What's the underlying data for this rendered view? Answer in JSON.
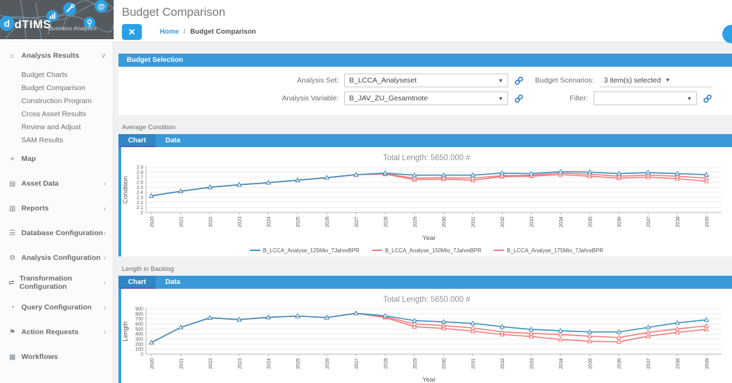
{
  "logo": {
    "name": "dTIMS",
    "tagline": "Business Analytics"
  },
  "sidebar": {
    "items": [
      {
        "label": "Analysis Results",
        "icon": "analysis-results-icon",
        "glyph": "⌂",
        "chevron": "expanded",
        "children": [
          "Budget Charts",
          "Budget Comparison",
          "Construction Program",
          "Cross Asset Results",
          "Review and Adjust",
          "SAM Results"
        ]
      },
      {
        "label": "Map",
        "icon": "map-icon",
        "glyph": "⌖"
      },
      {
        "label": "Asset Data",
        "icon": "asset-data-icon",
        "glyph": "▤",
        "chevron": "collapsed"
      },
      {
        "label": "Reports",
        "icon": "reports-icon",
        "glyph": "▥",
        "chevron": "collapsed"
      },
      {
        "label": "Database Configuration",
        "icon": "database-icon",
        "glyph": "☰",
        "chevron": "collapsed"
      },
      {
        "label": "Analysis Configuration",
        "icon": "analysis-configuration-icon",
        "glyph": "⚙",
        "chevron": "collapsed"
      },
      {
        "label": "Transformation Configuration",
        "icon": "transformation-icon",
        "glyph": "⇄",
        "chevron": "collapsed"
      },
      {
        "label": "Query Configuration",
        "icon": "query-icon",
        "glyph": "◔",
        "chevron": "collapsed"
      },
      {
        "label": "Action Requests",
        "icon": "action-requests-icon",
        "glyph": "⚑",
        "chevron": "collapsed"
      },
      {
        "label": "Workflows",
        "icon": "workflows-icon",
        "glyph": "▦"
      }
    ]
  },
  "header": {
    "title": "Budget Comparison",
    "close_label": "✕",
    "breadcrumb": {
      "home": "Home",
      "sep": "/",
      "current": "Budget Comparison"
    }
  },
  "budget_selection": {
    "title": "Budget Selection",
    "analysis_set": {
      "label": "Analysis Set:",
      "value": "B_LCCA_Analyseset"
    },
    "analysis_variable": {
      "label": "Analysis Variable:",
      "value": "B_JAV_ZU_Gesamtnote"
    },
    "budget_scenarios": {
      "label": "Budget Scenarios:",
      "value": "3 item(s) selected"
    },
    "filter": {
      "label": "Filter:",
      "value": ""
    }
  },
  "colors": {
    "accent_blue": "#3a99d8",
    "tab_active": "#3187c4",
    "tab_underline": "#5a5fc8",
    "series_blue": "#3c8dbc",
    "series_red": "#f07b7b",
    "button_blue": "#29a0e8"
  },
  "charts": [
    {
      "section_label": "Average Condition",
      "tabs": [
        "Chart",
        "Data"
      ],
      "active_tab": "Chart",
      "title": "Total Length: 5650.000 #",
      "show_legend": true,
      "chart_data": {
        "type": "line",
        "x": [
          2020,
          2021,
          2022,
          2023,
          2024,
          2025,
          2026,
          2027,
          2028,
          2029,
          2030,
          2031,
          2032,
          2033,
          2034,
          2035,
          2036,
          2037,
          2038,
          2039
        ],
        "xlabel": "Year",
        "ylabel": "Condition",
        "ylim": [
          2,
          2.9
        ],
        "ytick_step": 0.1,
        "grid": true,
        "legend_position": "bottom",
        "series": [
          {
            "name": "B_LCCA_Analyse_125Mio_7JahreBPR",
            "color": "#3c8dbc",
            "values": [
              2.33,
              2.42,
              2.5,
              2.55,
              2.59,
              2.64,
              2.69,
              2.75,
              2.78,
              2.74,
              2.74,
              2.74,
              2.78,
              2.77,
              2.81,
              2.8,
              2.77,
              2.79,
              2.77,
              2.75
            ]
          },
          {
            "name": "B_LCCA_Analyse_150Mio_7JahreBPR",
            "color": "#f07b7b",
            "values": [
              2.33,
              2.42,
              2.5,
              2.55,
              2.59,
              2.64,
              2.69,
              2.75,
              2.77,
              2.68,
              2.69,
              2.68,
              2.73,
              2.74,
              2.78,
              2.76,
              2.72,
              2.74,
              2.72,
              2.68
            ]
          },
          {
            "name": "B_LCCA_Analyse_175Mio_7JahreBPR",
            "color": "#f07b7b",
            "values": [
              2.33,
              2.42,
              2.5,
              2.55,
              2.59,
              2.64,
              2.69,
              2.75,
              2.76,
              2.65,
              2.66,
              2.64,
              2.71,
              2.72,
              2.75,
              2.72,
              2.68,
              2.7,
              2.67,
              2.62
            ]
          }
        ]
      }
    },
    {
      "section_label": "Length in Backlog",
      "tabs": [
        "Chart",
        "Data"
      ],
      "active_tab": "Chart",
      "title": "Total Length: 5650.000 #",
      "show_legend": false,
      "chart_data": {
        "type": "line",
        "x": [
          2020,
          2021,
          2022,
          2023,
          2024,
          2025,
          2026,
          2027,
          2028,
          2029,
          2030,
          2031,
          2032,
          2033,
          2034,
          2035,
          2036,
          2037,
          2038,
          2039
        ],
        "xlabel": "Year",
        "ylabel": "Length",
        "ylim": [
          0,
          900
        ],
        "ytick_step": 100,
        "grid": true,
        "legend_position": "none",
        "series": [
          {
            "name": "B_LCCA_Analyse_125Mio_7JahreBPR",
            "color": "#3c8dbc",
            "values": [
              230,
              530,
              720,
              685,
              730,
              755,
              725,
              810,
              760,
              665,
              640,
              610,
              545,
              490,
              465,
              440,
              440,
              530,
              620,
              680
            ]
          },
          {
            "name": "B_LCCA_Analyse_150Mio_7JahreBPR",
            "color": "#f07b7b",
            "values": [
              230,
              530,
              720,
              685,
              730,
              755,
              725,
              810,
              740,
              600,
              565,
              520,
              440,
              410,
              390,
              355,
              330,
              430,
              500,
              560
            ]
          },
          {
            "name": "B_LCCA_Analyse_175Mio_7JahreBPR",
            "color": "#f07b7b",
            "values": [
              230,
              530,
              720,
              685,
              730,
              755,
              725,
              810,
              725,
              545,
              510,
              455,
              390,
              350,
              290,
              255,
              245,
              355,
              430,
              490
            ]
          }
        ]
      }
    }
  ]
}
